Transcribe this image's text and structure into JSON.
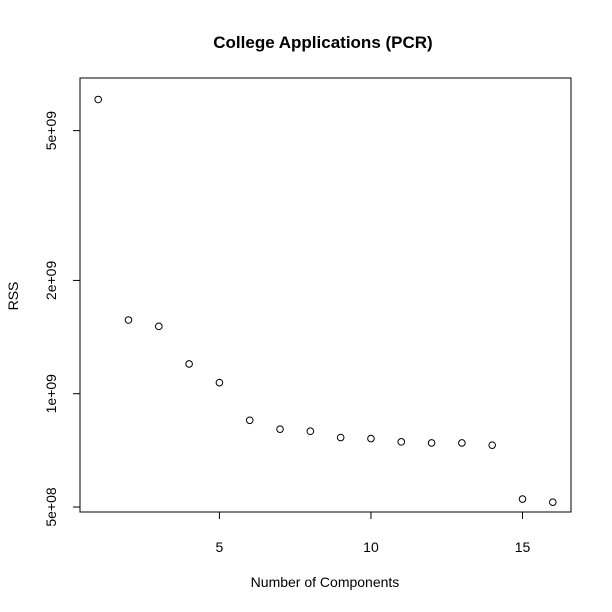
{
  "chart_data": {
    "type": "scatter",
    "title": "College Applications (PCR)",
    "xlabel": "Number of Components",
    "ylabel": "RSS",
    "log_y": true,
    "grid": false,
    "x": [
      1,
      2,
      3,
      4,
      5,
      6,
      7,
      8,
      9,
      10,
      11,
      12,
      13,
      14,
      15,
      16
    ],
    "y": [
      6050000000.0,
      1570000000.0,
      1510000000.0,
      1200000000.0,
      1070000000.0,
      850000000.0,
      805000000.0,
      795000000.0,
      765000000.0,
      760000000.0,
      745000000.0,
      740000000.0,
      740000000.0,
      730000000.0,
      525000000.0,
      515000000.0
    ],
    "xlim": [
      0.4,
      16.6
    ],
    "ylim": [
      485000000.0,
      6900000000.0
    ],
    "x_ticks": [
      {
        "value": 5,
        "label": "5"
      },
      {
        "value": 10,
        "label": "10"
      },
      {
        "value": 15,
        "label": "15"
      }
    ],
    "y_ticks": [
      {
        "value": 500000000.0,
        "label": "5e+08"
      },
      {
        "value": 1000000000.0,
        "label": "1e+09"
      },
      {
        "value": 2000000000.0,
        "label": "2e+09"
      },
      {
        "value": 5000000000.0,
        "label": "5e+09"
      }
    ]
  }
}
